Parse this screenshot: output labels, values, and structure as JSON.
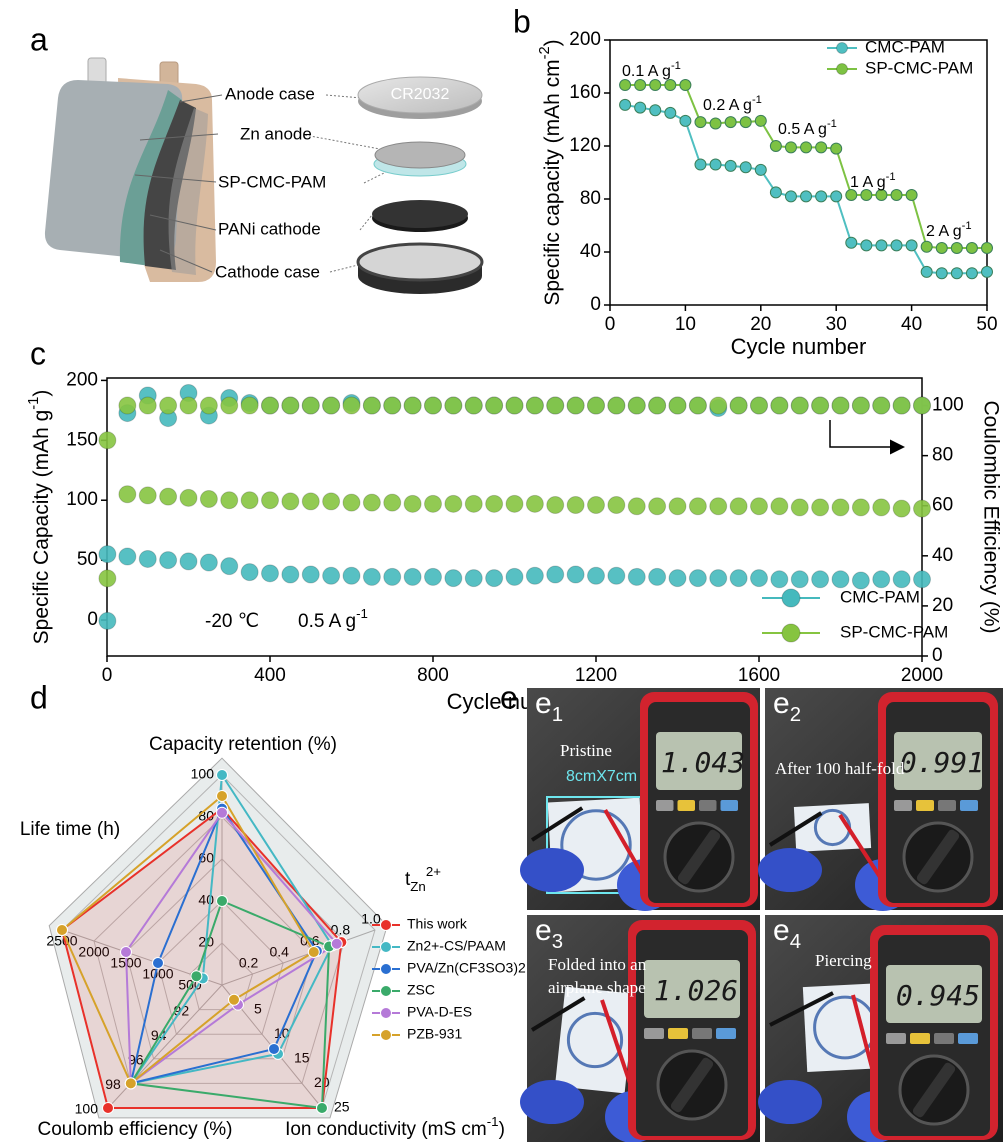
{
  "panels": [
    "a",
    "b",
    "c",
    "d",
    "e"
  ],
  "schematic": {
    "labels": [
      "Anode case",
      "Zn anode",
      "SP-CMC-PAM",
      "PANi cathode",
      "Cathode case"
    ],
    "coin": "CR2032"
  },
  "chart_data": [
    {
      "type": "line",
      "ylabel": [
        "Specific capacity (mAh cm",
        {
          "sup": "-2"
        },
        ")"
      ],
      "xlabel": "Cycle number",
      "x": [
        2,
        4,
        6,
        8,
        10,
        12,
        14,
        16,
        18,
        20,
        22,
        24,
        26,
        28,
        30,
        32,
        34,
        36,
        38,
        40,
        42,
        44,
        46,
        48,
        50
      ],
      "xlim": [
        0,
        50
      ],
      "xticks": [
        0,
        10,
        20,
        30,
        40,
        50
      ],
      "ylim": [
        0,
        200
      ],
      "yticks": [
        0,
        40,
        80,
        120,
        160,
        200
      ],
      "legend": "upper right",
      "annotations": [
        [
          "0.1 A g",
          {
            "sup": "-1"
          }
        ],
        [
          "0.2 A g",
          {
            "sup": "-1"
          }
        ],
        [
          "0.5 A g",
          {
            "sup": "-1"
          }
        ],
        [
          "1 A g",
          {
            "sup": "-1"
          }
        ],
        [
          "2 A g",
          {
            "sup": "-1"
          }
        ]
      ],
      "series": [
        {
          "name": "CMC-PAM",
          "color": "#4fbfc1",
          "values": [
            151,
            149,
            147,
            145,
            139,
            106,
            106,
            105,
            104,
            102,
            85,
            82,
            82,
            82,
            82,
            47,
            45,
            45,
            45,
            45,
            25,
            24,
            24,
            24,
            25
          ]
        },
        {
          "name": "SP-CMC-PAM",
          "color": "#7dc243",
          "values": [
            166,
            166,
            166,
            166,
            166,
            138,
            137,
            138,
            138,
            139,
            120,
            119,
            119,
            119,
            118,
            83,
            83,
            83,
            83,
            83,
            44,
            43,
            43,
            43,
            43
          ]
        }
      ]
    },
    {
      "type": "scatter",
      "ylabel": [
        "Specific Capacity (mAh g",
        {
          "sup": "-1"
        },
        ")"
      ],
      "y2label": "Coulombic Efficiency (%)",
      "xlabel": "Cycle number",
      "x": [
        1,
        50,
        100,
        150,
        200,
        250,
        300,
        350,
        400,
        450,
        500,
        550,
        600,
        650,
        700,
        750,
        800,
        850,
        900,
        950,
        1000,
        1050,
        1100,
        1150,
        1200,
        1250,
        1300,
        1350,
        1400,
        1450,
        1500,
        1550,
        1600,
        1650,
        1700,
        1750,
        1800,
        1850,
        1900,
        1950,
        2000
      ],
      "xlim": [
        0,
        2000
      ],
      "xticks": [
        0,
        400,
        800,
        1200,
        1600,
        2000
      ],
      "ylim": [
        -30,
        202
      ],
      "yticks": [
        0,
        50,
        100,
        150,
        200
      ],
      "y2lim": [
        0,
        111
      ],
      "y2ticks": [
        0,
        20,
        40,
        60,
        80,
        100
      ],
      "legend": "lower right",
      "annotations": [
        "-20 ℃",
        [
          "0.5 A g",
          {
            "sup": "-1"
          }
        ]
      ],
      "series": [
        {
          "name": "CMC-PAM",
          "color": "#45b9bd",
          "values": [
            55,
            53,
            51,
            50,
            49,
            48,
            45,
            40,
            39,
            38,
            38,
            37,
            37,
            36,
            36,
            36,
            36,
            35,
            35,
            35,
            36,
            37,
            38,
            38,
            37,
            37,
            36,
            36,
            35,
            35,
            35,
            35,
            35,
            34,
            34,
            34,
            34,
            33,
            34,
            34,
            34
          ]
        },
        {
          "name": "SP-CMC-PAM",
          "color": "#86c440",
          "values": [
            150,
            105,
            104,
            103,
            102,
            101,
            100,
            100,
            100,
            99,
            99,
            99,
            98,
            98,
            98,
            97,
            97,
            97,
            97,
            97,
            97,
            97,
            96,
            96,
            96,
            96,
            95,
            95,
            95,
            95,
            95,
            95,
            95,
            95,
            94,
            94,
            94,
            94,
            94,
            93,
            93
          ]
        },
        {
          "color": "#45b9bd",
          "axis": "y2",
          "values": [
            14,
            97,
            104,
            95,
            105,
            96,
            103,
            101,
            100,
            100,
            100,
            100,
            101,
            100,
            100,
            100,
            100,
            100,
            100,
            100,
            100,
            100,
            100,
            100,
            100,
            100,
            100,
            100,
            100,
            100,
            99,
            100,
            100,
            100,
            100,
            100,
            100,
            100,
            100,
            100,
            100
          ]
        },
        {
          "color": "#86c440",
          "axis": "y2",
          "values": [
            31,
            100,
            100,
            100,
            100,
            100,
            100,
            100,
            100,
            100,
            100,
            100,
            100,
            100,
            100,
            100,
            100,
            100,
            100,
            100,
            100,
            100,
            100,
            100,
            100,
            100,
            100,
            100,
            100,
            100,
            100,
            100,
            100,
            100,
            100,
            100,
            100,
            100,
            100,
            100,
            100
          ]
        }
      ]
    },
    {
      "type": "radar",
      "axes": [
        {
          "label": "Capacity retention (%)",
          "lim": [
            0,
            100
          ],
          "ticks": [
            20,
            40,
            60,
            80,
            100
          ]
        },
        {
          "label": [
            "t",
            {
              "sub": "Zn"
            },
            {
              "sup": "2+"
            }
          ],
          "lim": [
            0,
            1
          ],
          "ticks": [
            0.2,
            0.4,
            0.6,
            0.8,
            {
              "value": 1,
              "label": "1.0"
            }
          ]
        },
        {
          "label": [
            "Ion conductivity (mS cm",
            {
              "sup": "-1"
            },
            ")"
          ],
          "lim": [
            0,
            25
          ],
          "ticks": [
            5,
            10,
            15,
            20,
            25
          ]
        },
        {
          "label": "Coulomb efficiency (%)",
          "lim": [
            90,
            100
          ],
          "ticks": [
            92,
            94,
            96,
            98,
            100
          ]
        },
        {
          "label": "Life time (h)",
          "lim": [
            0,
            2500
          ],
          "ticks": [
            500,
            1000,
            1500,
            2000,
            2500
          ]
        }
      ],
      "series": [
        {
          "name": "This work",
          "color": "#e8312a",
          "values": [
            84,
            0.78,
            25,
            100,
            2500
          ]
        },
        {
          "name": "Zn2+-CS/PAAM",
          "color": "#44b8c4",
          "values": [
            100,
            0.72,
            14,
            98,
            300
          ]
        },
        {
          "name": "PVA/Zn(CF3SO3)2",
          "color": "#2a6fd1",
          "values": [
            84,
            0.62,
            13,
            98,
            1000
          ]
        },
        {
          "name": "ZSC",
          "color": "#3aaa6a",
          "values": [
            40,
            0.7,
            25,
            98,
            400
          ]
        },
        {
          "name": "PVA-D-ES",
          "color": "#b57ad8",
          "values": [
            82,
            0.75,
            4,
            98,
            1500
          ]
        },
        {
          "name": "PZB-931",
          "color": "#d6a22a",
          "values": [
            90,
            0.6,
            3,
            98,
            2500
          ]
        }
      ]
    }
  ],
  "photos": [
    {
      "label": "e",
      "index": "1",
      "caption": [
        "Pristine"
      ],
      "size": "8cmX7cm",
      "reading": "1.043"
    },
    {
      "label": "e",
      "index": "2",
      "caption": [
        "After 100 half-fold"
      ],
      "reading": "0.991"
    },
    {
      "label": "e",
      "index": "3",
      "caption": [
        "Folded into an",
        "airplane shape"
      ],
      "reading": "1.026"
    },
    {
      "label": "e",
      "index": "4",
      "caption": [
        "Piercing"
      ],
      "reading": "0.945"
    }
  ]
}
